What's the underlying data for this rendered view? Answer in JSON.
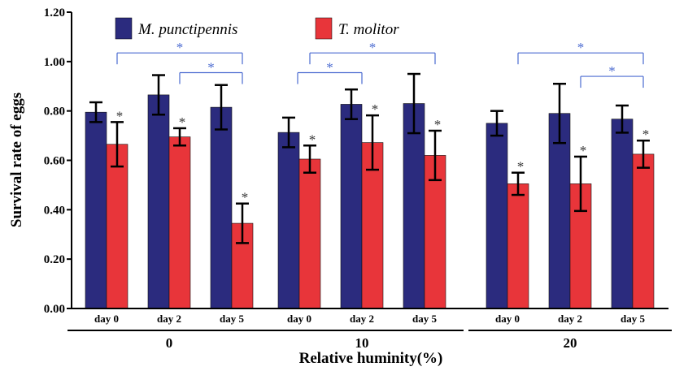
{
  "chart_data": {
    "type": "bar",
    "ylabel": "Survival rate of eggs",
    "xlabel": "Relative huminity(%)",
    "ylim": [
      0,
      1.2
    ],
    "yticks": [
      "0.00",
      "0.20",
      "0.40",
      "0.60",
      "0.80",
      "1.00",
      "1.20"
    ],
    "groups": [
      "0",
      "10",
      "20"
    ],
    "days": [
      "day 0",
      "day 2",
      "day 5"
    ],
    "legend_position": "top",
    "series": [
      {
        "name": "M. punctipennis",
        "color": "#2b2b7e",
        "values": [
          0.795,
          0.865,
          0.815,
          0.713,
          0.827,
          0.83,
          0.75,
          0.79,
          0.767
        ],
        "errors": [
          0.04,
          0.08,
          0.09,
          0.06,
          0.06,
          0.12,
          0.05,
          0.12,
          0.055
        ]
      },
      {
        "name": "T. molitor",
        "color": "#e8353a",
        "values": [
          0.665,
          0.695,
          0.345,
          0.605,
          0.672,
          0.62,
          0.505,
          0.505,
          0.625
        ],
        "errors": [
          0.09,
          0.035,
          0.08,
          0.055,
          0.11,
          0.1,
          0.045,
          0.11,
          0.055
        ]
      }
    ],
    "bar_asterisk": "*",
    "significance_brackets": [
      {
        "group": "0",
        "from": "day 0",
        "to": "day 5",
        "y": 1.035,
        "label": "*"
      },
      {
        "group": "0",
        "from": "day 2",
        "to": "day 5",
        "y": 0.955,
        "label": "*"
      },
      {
        "group": "10",
        "from": "day 0",
        "to": "day 5",
        "y": 1.035,
        "label": "*"
      },
      {
        "group": "10",
        "from": "day 0",
        "to": "day 2",
        "y": 0.955,
        "label": "*"
      },
      {
        "group": "20",
        "from": "day 0",
        "to": "day 5",
        "y": 1.035,
        "label": "*"
      },
      {
        "group": "20",
        "from": "day 2",
        "to": "day 5",
        "y": 0.94,
        "label": "*"
      }
    ]
  }
}
